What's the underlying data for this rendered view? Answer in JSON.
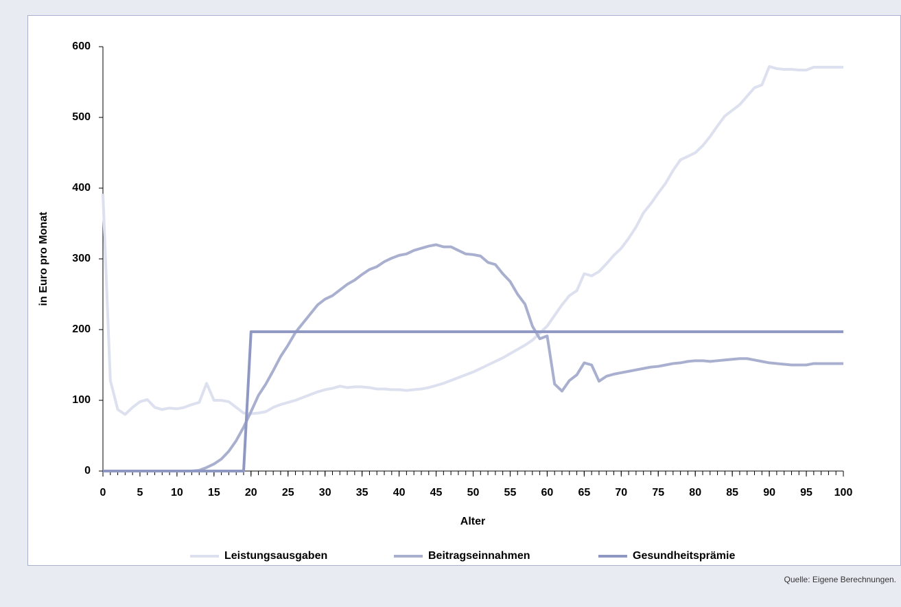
{
  "chart_data": {
    "type": "line",
    "x_label": "Alter",
    "y_label": "in Euro pro Monat",
    "source": "Quelle: Eigene Berechnungen.",
    "x": [
      0,
      1,
      2,
      3,
      4,
      5,
      6,
      7,
      8,
      9,
      10,
      11,
      12,
      13,
      14,
      15,
      16,
      17,
      18,
      19,
      20,
      21,
      22,
      23,
      24,
      25,
      26,
      27,
      28,
      29,
      30,
      31,
      32,
      33,
      34,
      35,
      36,
      37,
      38,
      39,
      40,
      41,
      42,
      43,
      44,
      45,
      46,
      47,
      48,
      49,
      50,
      51,
      52,
      53,
      54,
      55,
      56,
      57,
      58,
      59,
      60,
      61,
      62,
      63,
      64,
      65,
      66,
      67,
      68,
      69,
      70,
      71,
      72,
      73,
      74,
      75,
      76,
      77,
      78,
      79,
      80,
      81,
      82,
      83,
      84,
      85,
      86,
      87,
      88,
      89,
      90,
      91,
      92,
      93,
      94,
      95,
      96,
      97,
      98,
      99,
      100
    ],
    "series": [
      {
        "name": "Leistungsausgaben",
        "color": "#dde0ee",
        "values": [
          392,
          128,
          87,
          80,
          90,
          98,
          101,
          90,
          87,
          89,
          88,
          90,
          94,
          97,
          124,
          100,
          100,
          98,
          90,
          82,
          81,
          82,
          84,
          90,
          94,
          97,
          100,
          104,
          108,
          112,
          115,
          117,
          120,
          118,
          119,
          119,
          118,
          116,
          116,
          115,
          115,
          114,
          115,
          116,
          118,
          121,
          124,
          128,
          132,
          136,
          140,
          145,
          150,
          155,
          160,
          166,
          172,
          178,
          185,
          195,
          205,
          220,
          235,
          248,
          255,
          279,
          276,
          282,
          293,
          305,
          315,
          329,
          345,
          365,
          378,
          393,
          407,
          425,
          440,
          445,
          450,
          460,
          473,
          488,
          502,
          510,
          518,
          530,
          542,
          546,
          572,
          569,
          568,
          568,
          567,
          567,
          571,
          571,
          571,
          571,
          571
        ]
      },
      {
        "name": "Beitragseinnahmen",
        "color": "#a9b0cf",
        "values": [
          0,
          0,
          0,
          0,
          0,
          0,
          0,
          0,
          0,
          0,
          0,
          0,
          0,
          1,
          5,
          10,
          17,
          28,
          43,
          62,
          84,
          107,
          123,
          142,
          162,
          178,
          196,
          209,
          222,
          235,
          243,
          248,
          256,
          264,
          270,
          278,
          285,
          289,
          296,
          301,
          305,
          307,
          312,
          315,
          318,
          320,
          317,
          317,
          312,
          307,
          306,
          304,
          295,
          292,
          279,
          268,
          250,
          236,
          205,
          187,
          191,
          123,
          113,
          128,
          136,
          153,
          150,
          127,
          134,
          137,
          139,
          141,
          143,
          145,
          147,
          148,
          150,
          152,
          153,
          155,
          156,
          156,
          155,
          156,
          157,
          158,
          159,
          159,
          157,
          155,
          153,
          152,
          151,
          150,
          150,
          150,
          152,
          152,
          152,
          152,
          152
        ]
      },
      {
        "name": "Gesundheitsprämie",
        "color": "#8e98c3",
        "values": [
          0,
          0,
          0,
          0,
          0,
          0,
          0,
          0,
          0,
          0,
          0,
          0,
          0,
          0,
          0,
          0,
          0,
          0,
          0,
          0,
          197,
          197,
          197,
          197,
          197,
          197,
          197,
          197,
          197,
          197,
          197,
          197,
          197,
          197,
          197,
          197,
          197,
          197,
          197,
          197,
          197,
          197,
          197,
          197,
          197,
          197,
          197,
          197,
          197,
          197,
          197,
          197,
          197,
          197,
          197,
          197,
          197,
          197,
          197,
          197,
          197,
          197,
          197,
          197,
          197,
          197,
          197,
          197,
          197,
          197,
          197,
          197,
          197,
          197,
          197,
          197,
          197,
          197,
          197,
          197,
          197,
          197,
          197,
          197,
          197,
          197,
          197,
          197,
          197,
          197,
          197,
          197,
          197,
          197,
          197,
          197,
          197,
          197,
          197,
          197,
          197
        ]
      }
    ],
    "xlim": [
      0,
      100
    ],
    "xticks": [
      0,
      5,
      10,
      15,
      20,
      25,
      30,
      35,
      40,
      45,
      50,
      55,
      60,
      65,
      70,
      75,
      80,
      85,
      90,
      95,
      100
    ],
    "xminorticks": [
      0,
      1,
      2,
      3,
      4,
      5,
      6,
      7,
      8,
      9,
      10,
      11,
      12,
      13,
      14,
      15,
      16,
      17,
      18,
      19,
      20,
      21,
      22,
      23,
      24,
      25,
      26,
      27,
      28,
      29,
      30,
      31,
      32,
      33,
      34,
      35,
      36,
      37,
      38,
      39,
      40,
      41,
      42,
      43,
      44,
      45,
      46,
      47,
      48,
      49,
      50,
      51,
      52,
      53,
      54,
      55,
      56,
      57,
      58,
      59,
      60,
      61,
      62,
      63,
      64,
      65,
      66,
      67,
      68,
      69,
      70,
      71,
      72,
      73,
      74,
      75,
      76,
      77,
      78,
      79,
      80,
      81,
      82,
      83,
      84,
      85,
      86,
      87,
      88,
      89,
      90,
      91,
      92,
      93,
      94,
      95,
      96,
      97,
      98,
      99,
      100
    ],
    "ylim": [
      0,
      600
    ],
    "yticks": [
      0,
      100,
      200,
      300,
      400,
      500,
      600
    ]
  }
}
